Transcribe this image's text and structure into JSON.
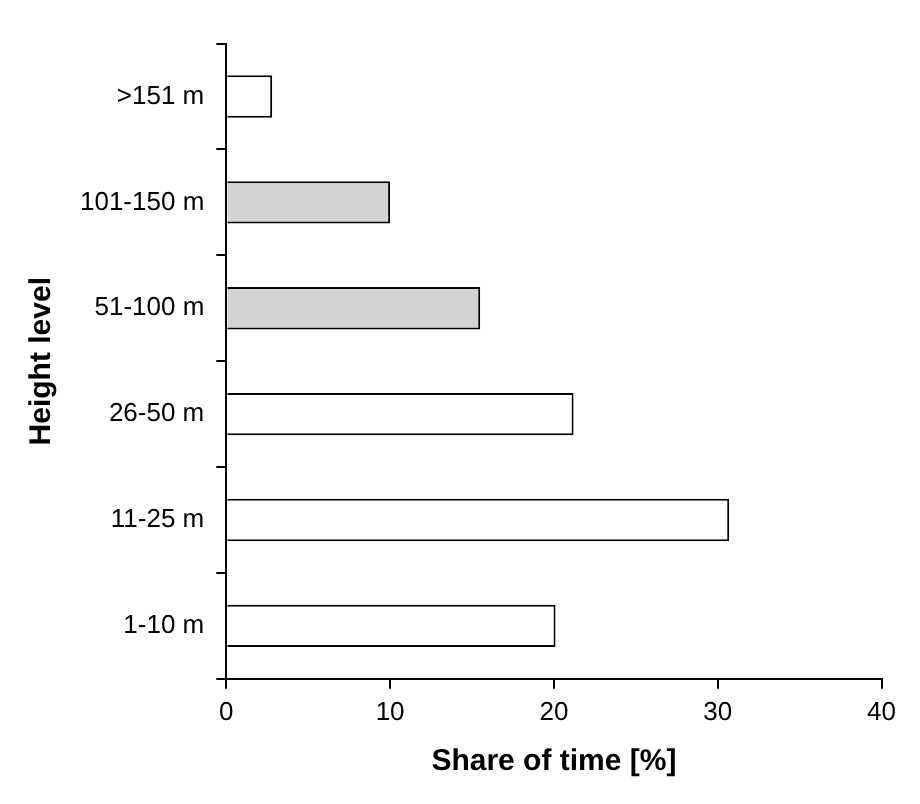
{
  "chart_data": {
    "type": "bar",
    "orientation": "horizontal",
    "xlabel": "Share of time [%]",
    "ylabel": "Height level",
    "categories": [
      ">151 m",
      "101-150 m",
      "51-100 m",
      "26-50 m",
      "11-25 m",
      "1-10 m"
    ],
    "values": [
      2.8,
      10,
      15.5,
      21.2,
      30.7,
      20.1
    ],
    "colors": [
      "#ffffff",
      "#d3d3d3",
      "#d3d3d3",
      "#ffffff",
      "#ffffff",
      "#ffffff"
    ],
    "xlim": [
      0,
      40
    ],
    "xticks": [
      0,
      10,
      20,
      30,
      40
    ],
    "grid": false,
    "legend": false
  }
}
